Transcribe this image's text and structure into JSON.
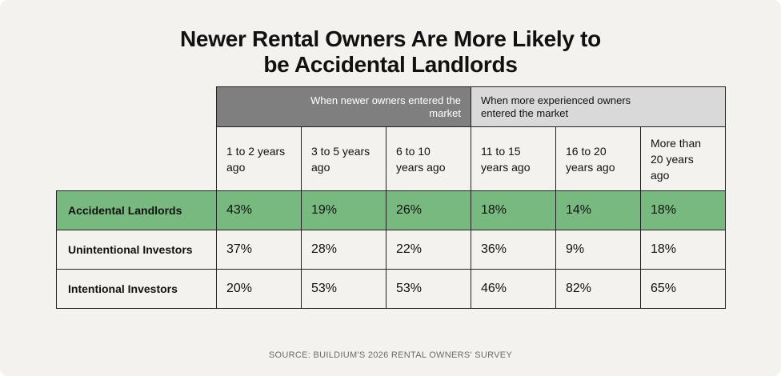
{
  "title": [
    "Newer Rental Owners Are More Likely to",
    "be Accidental Landlords"
  ],
  "table": {
    "groups": [
      "When newer owners entered the market",
      "When more experienced owners entered the market"
    ],
    "columns": [
      "1 to 2 years ago",
      "3 to 5 years ago",
      "6 to 10 years ago",
      "11 to 15 years ago",
      "16 to 20 years ago",
      "More than 20 years ago"
    ],
    "rows": [
      {
        "label": "Accidental Landlords",
        "values": [
          "43%",
          "19%",
          "26%",
          "18%",
          "14%",
          "18%"
        ]
      },
      {
        "label": "Unintentional Investors",
        "values": [
          "37%",
          "28%",
          "22%",
          "36%",
          "9%",
          "18%"
        ]
      },
      {
        "label": "Intentional Investors",
        "values": [
          "20%",
          "53%",
          "53%",
          "46%",
          "82%",
          "65%"
        ]
      }
    ]
  },
  "source": "SOURCE: BUILDIUM'S 2026 RENTAL OWNERS' SURVEY"
}
